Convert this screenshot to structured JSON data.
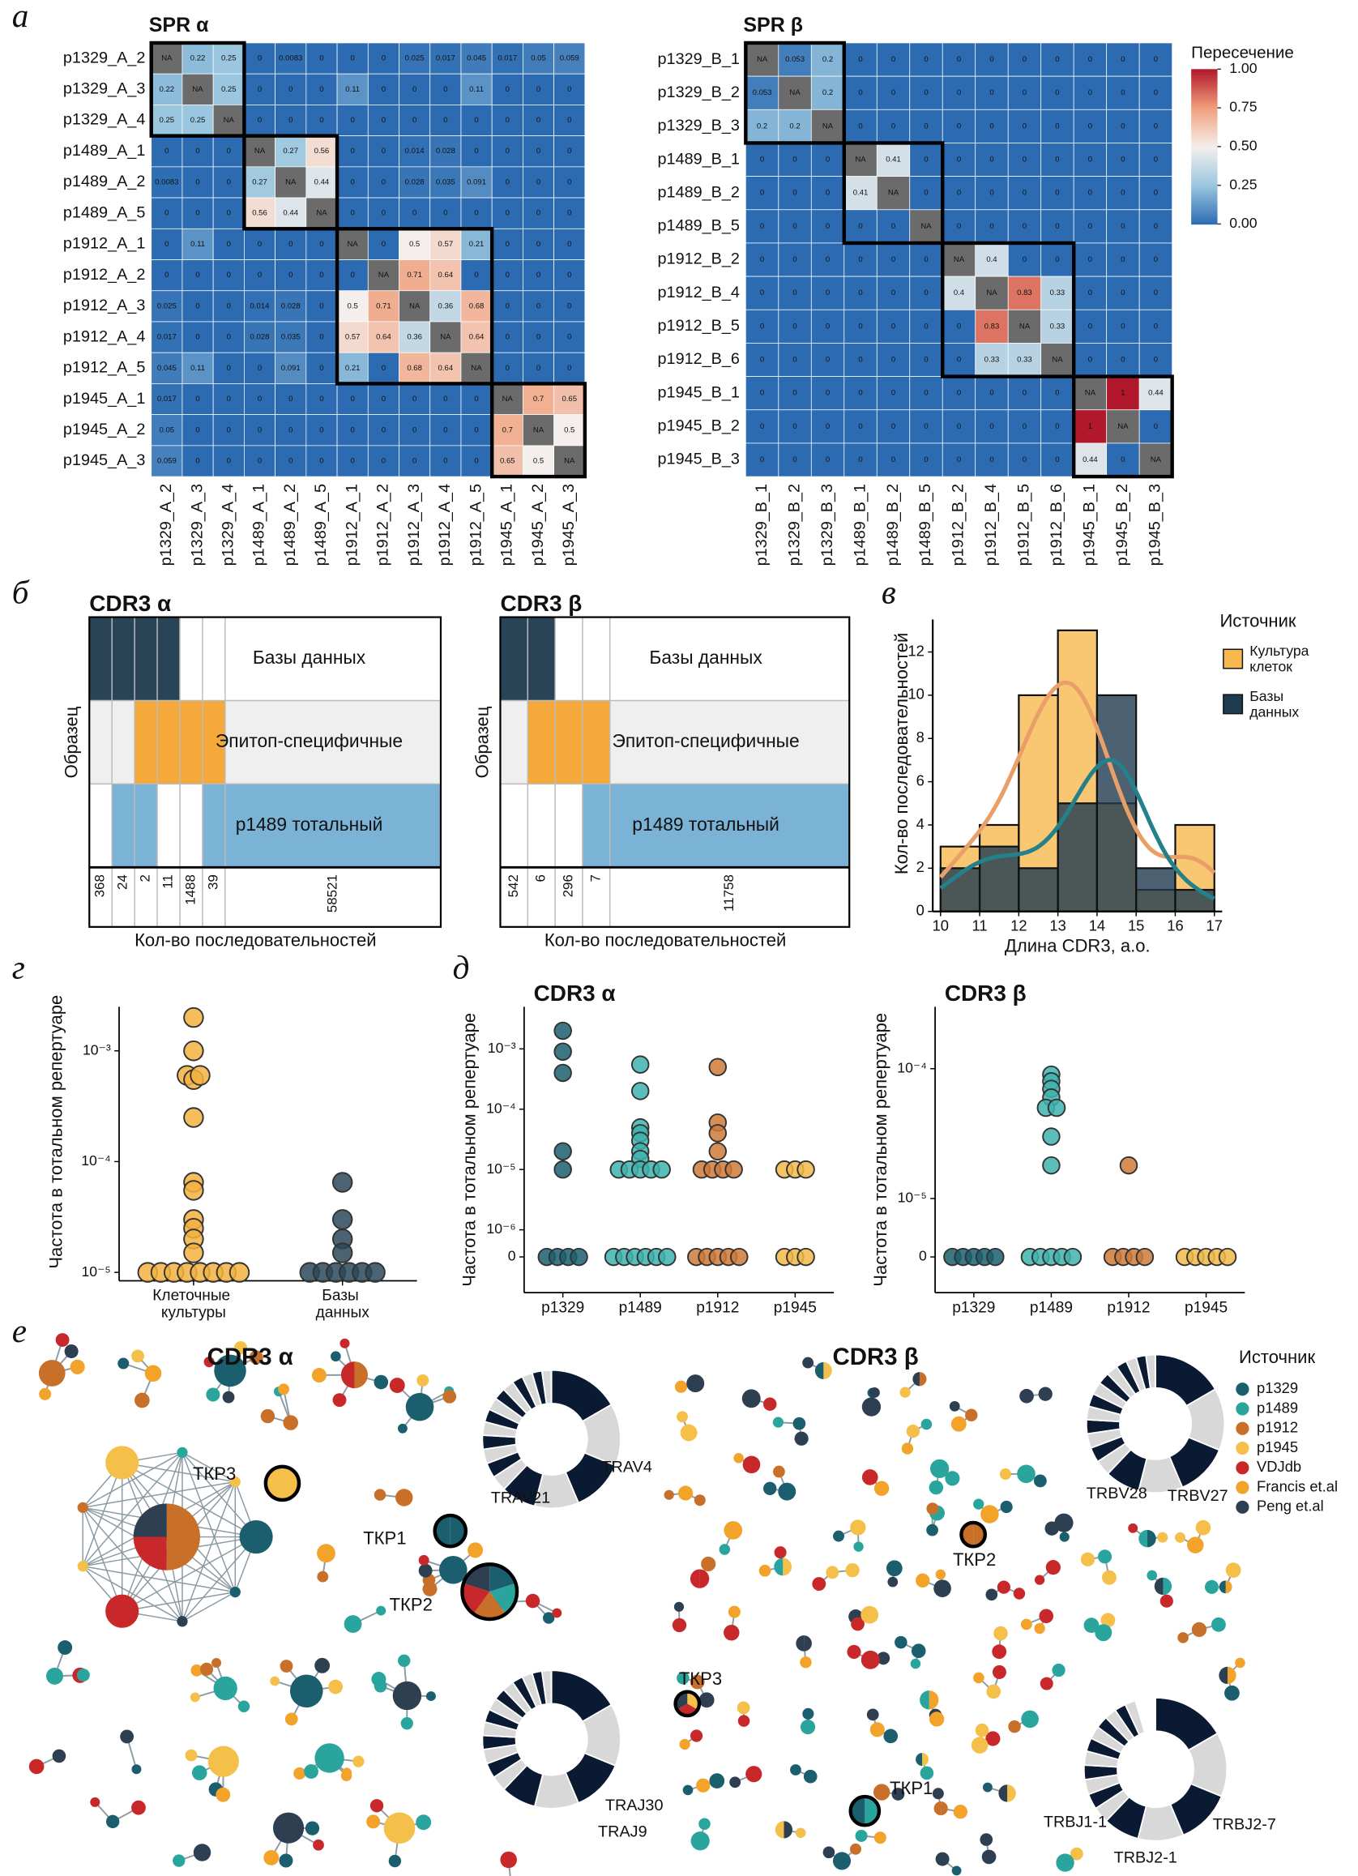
{
  "chart_data": [
    {
      "type": "heatmap",
      "title": "SPR α",
      "rows": [
        "p1329_A_2",
        "p1329_A_3",
        "p1329_A_4",
        "p1489_A_1",
        "p1489_A_2",
        "p1489_A_5",
        "p1912_A_1",
        "p1912_A_2",
        "p1912_A_3",
        "p1912_A_4",
        "p1912_A_5",
        "p1945_A_1",
        "p1945_A_2",
        "p1945_A_3"
      ],
      "columns": [
        "p1329_A_2",
        "p1329_A_3",
        "p1329_A_4",
        "p1489_A_1",
        "p1489_A_2",
        "p1489_A_5",
        "p1912_A_1",
        "p1912_A_2",
        "p1912_A_3",
        "p1912_A_4",
        "p1912_A_5",
        "p1945_A_1",
        "p1945_A_2",
        "p1945_A_3"
      ],
      "values": [
        [
          null,
          0.22,
          0.25,
          0,
          0.0083,
          0,
          0,
          0,
          0.025,
          0.017,
          0.045,
          0.017,
          0.05,
          0.059
        ],
        [
          0.22,
          null,
          0.25,
          0,
          0,
          0,
          0.11,
          0,
          0,
          0,
          0.11,
          0,
          0,
          0
        ],
        [
          0.25,
          0.25,
          null,
          0,
          0,
          0,
          0,
          0,
          0,
          0,
          0,
          0,
          0,
          0
        ],
        [
          0,
          0,
          0,
          null,
          0.27,
          0.56,
          0,
          0,
          0.014,
          0.028,
          0,
          0,
          0,
          0
        ],
        [
          0.0083,
          0,
          0,
          0.27,
          null,
          0.44,
          0,
          0,
          0.028,
          0.035,
          0.091,
          0,
          0,
          0
        ],
        [
          0,
          0,
          0,
          0.56,
          0.44,
          null,
          0,
          0,
          0,
          0,
          0,
          0,
          0,
          0
        ],
        [
          0,
          0.11,
          0,
          0,
          0,
          0,
          null,
          0,
          0.5,
          0.57,
          0.21,
          0,
          0,
          0
        ],
        [
          0,
          0,
          0,
          0,
          0,
          0,
          0,
          null,
          0.71,
          0.64,
          0,
          0,
          0,
          0
        ],
        [
          0.025,
          0,
          0,
          0.014,
          0.028,
          0,
          0.5,
          0.71,
          null,
          0.36,
          0.68,
          0,
          0,
          0
        ],
        [
          0.017,
          0,
          0,
          0.028,
          0.035,
          0,
          0.57,
          0.64,
          0.36,
          null,
          0.64,
          0,
          0,
          0
        ],
        [
          0.045,
          0.11,
          0,
          0,
          0.091,
          0,
          0.21,
          0,
          0.68,
          0.64,
          null,
          0,
          0,
          0
        ],
        [
          0.017,
          0,
          0,
          0,
          0,
          0,
          0,
          0,
          0,
          0,
          0,
          null,
          0.7,
          0.65
        ],
        [
          0.05,
          0,
          0,
          0,
          0,
          0,
          0,
          0,
          0,
          0,
          0,
          0.7,
          null,
          0.5
        ],
        [
          0.059,
          0,
          0,
          0,
          0,
          0,
          0,
          0,
          0,
          0,
          0,
          0.65,
          0.5,
          null
        ]
      ],
      "clim": [
        0,
        1
      ],
      "cmap": [
        "#2c6bb2",
        "#9ac6df",
        "#f4efed",
        "#f1a07d",
        "#b2182b"
      ],
      "na_label": "NA",
      "na_color": "#6b6b6b"
    },
    {
      "type": "heatmap",
      "title": "SPR β",
      "rows": [
        "p1329_B_1",
        "p1329_B_2",
        "p1329_B_3",
        "p1489_B_1",
        "p1489_B_2",
        "p1489_B_5",
        "p1912_B_2",
        "p1912_B_4",
        "p1912_B_5",
        "p1912_B_6",
        "p1945_B_1",
        "p1945_B_2",
        "p1945_B_3"
      ],
      "columns": [
        "p1329_B_1",
        "p1329_B_2",
        "p1329_B_3",
        "p1489_B_1",
        "p1489_B_2",
        "p1489_B_5",
        "p1912_B_2",
        "p1912_B_4",
        "p1912_B_5",
        "p1912_B_6",
        "p1945_B_1",
        "p1945_B_2",
        "p1945_B_3"
      ],
      "values": [
        [
          null,
          0.053,
          0.2,
          0,
          0,
          0,
          0,
          0,
          0,
          0,
          0,
          0,
          0
        ],
        [
          0.053,
          null,
          0.2,
          0,
          0,
          0,
          0,
          0,
          0,
          0,
          0,
          0,
          0
        ],
        [
          0.2,
          0.2,
          null,
          0,
          0,
          0,
          0,
          0,
          0,
          0,
          0,
          0,
          0
        ],
        [
          0,
          0,
          0,
          null,
          0.41,
          0,
          0,
          0,
          0,
          0,
          0,
          0,
          0
        ],
        [
          0,
          0,
          0,
          0.41,
          null,
          0,
          0,
          0,
          0,
          0,
          0,
          0,
          0
        ],
        [
          0,
          0,
          0,
          0,
          0,
          null,
          0,
          0,
          0,
          0,
          0,
          0,
          0
        ],
        [
          0,
          0,
          0,
          0,
          0,
          0,
          null,
          0.4,
          0,
          0,
          0,
          0,
          0
        ],
        [
          0,
          0,
          0,
          0,
          0,
          0,
          0.4,
          null,
          0.83,
          0.33,
          0,
          0,
          0
        ],
        [
          0,
          0,
          0,
          0,
          0,
          0,
          0,
          0.83,
          null,
          0.33,
          0,
          0,
          0
        ],
        [
          0,
          0,
          0,
          0,
          0,
          0,
          0,
          0.33,
          0.33,
          null,
          0,
          0,
          0
        ],
        [
          0,
          0,
          0,
          0,
          0,
          0,
          0,
          0,
          0,
          0,
          null,
          1,
          0.44
        ],
        [
          0,
          0,
          0,
          0,
          0,
          0,
          0,
          0,
          0,
          0,
          1,
          null,
          0
        ],
        [
          0,
          0,
          0,
          0,
          0,
          0,
          0,
          0,
          0,
          0,
          0.44,
          0,
          null
        ]
      ],
      "clim": [
        0,
        1
      ],
      "cmap": [
        "#2c6bb2",
        "#9ac6df",
        "#f4efed",
        "#f1a07d",
        "#b2182b"
      ],
      "na_label": "NA",
      "na_color": "#6b6b6b",
      "legend_title": "Пересечение",
      "colorbar_ticks": [
        {
          "value": 0,
          "label": "0.00"
        },
        {
          "value": 0.25,
          "label": "0.25"
        },
        {
          "value": 0.5,
          "label": "0.50"
        },
        {
          "value": 0.75,
          "label": "0.75"
        },
        {
          "value": 1,
          "label": "1.00"
        }
      ]
    },
    {
      "type": "upset",
      "title": "CDR3 α",
      "sets": [
        "Базы данных",
        "Эпитоп-специфичные",
        "p1489 тотальный"
      ],
      "set_colors": [
        "#2a4457",
        "#f5a93a",
        "#7ab3d6"
      ],
      "counts": [
        368,
        24,
        2,
        11,
        1488,
        39,
        58521
      ],
      "membership": [
        [
          0
        ],
        [
          0,
          2
        ],
        [
          0,
          1,
          2
        ],
        [
          0,
          1
        ],
        [
          1
        ],
        [
          1,
          2
        ],
        [
          2
        ]
      ],
      "ylabel": "Образец",
      "xlabel": "Кол-во последовательностей"
    },
    {
      "type": "upset",
      "title": "CDR3 β",
      "sets": [
        "Базы данных",
        "Эпитоп-специфичные",
        "p1489 тотальный"
      ],
      "set_colors": [
        "#2a4457",
        "#f5a93a",
        "#7ab3d6"
      ],
      "counts": [
        542,
        6,
        296,
        7,
        11758
      ],
      "membership": [
        [
          0
        ],
        [
          0,
          1
        ],
        [
          1
        ],
        [
          1,
          2
        ],
        [
          2
        ]
      ],
      "ylabel": "Образец",
      "xlabel": "Кол-во последовательностей"
    },
    {
      "type": "histogram",
      "bins": [
        10,
        11,
        12,
        13,
        14,
        15,
        16,
        17
      ],
      "series": [
        {
          "name": "Культура клеток",
          "color": "#f8b84e",
          "values": [
            3,
            4,
            10,
            13,
            5,
            1,
            4
          ]
        },
        {
          "name": "Базы данных",
          "color": "#1f3b50",
          "values": [
            2,
            3,
            2,
            5,
            10,
            2,
            1
          ]
        }
      ],
      "xlim": [
        9.8,
        17.2
      ],
      "xticks": [
        10,
        11,
        12,
        13,
        14,
        15,
        16,
        17
      ],
      "ylim": [
        0,
        13.5
      ],
      "yticks": [
        0,
        2,
        4,
        6,
        8,
        10,
        12
      ],
      "xlabel": "Длина CDR3, а.о.",
      "ylabel": "Кол-во последовательностей",
      "legend_title": "Источник",
      "kde_colors": [
        "#e8a068",
        "#24808a"
      ]
    },
    {
      "type": "strip",
      "yscale": "log",
      "ylabel": "Частота в тотальном репертуаре",
      "categories": [
        "Клеточные культуры",
        "Базы данных"
      ],
      "colors": [
        "#f5b23f",
        "#2b485a"
      ],
      "values": [
        [
          0.002,
          0.001,
          0.0006,
          0.00055,
          0.0006,
          0.00025,
          6.5e-05,
          5.5e-05,
          3e-05,
          2.5e-05,
          2e-05,
          1.5e-05,
          1e-05,
          1e-05,
          1e-05,
          1e-05,
          1e-05,
          1e-05,
          1e-05,
          1e-05
        ],
        [
          6.5e-05,
          3e-05,
          2e-05,
          1.5e-05,
          1e-05,
          1e-05,
          1e-05,
          1e-05,
          1e-05,
          1e-05
        ]
      ],
      "ylim": [
        8.4e-06,
        0.0025
      ],
      "yticks": [
        {
          "value": 1e-05,
          "label": "10⁻⁵"
        },
        {
          "value": 0.0001,
          "label": "10⁻⁴"
        },
        {
          "value": 0.001,
          "label": "10⁻³"
        }
      ]
    },
    {
      "type": "strip",
      "yscale": "symlog",
      "title": "CDR3 α",
      "ylabel": "Частота в тотальном репертуаре",
      "categories": [
        "p1329",
        "p1489",
        "p1912",
        "p1945"
      ],
      "colors": [
        "#1b5f6e",
        "#3fb3ae",
        "#cf7a3a",
        "#f2b84b"
      ],
      "values": [
        [
          0.002,
          0.0009,
          0.0004,
          2e-05,
          1e-05,
          0,
          0,
          0,
          0
        ],
        [
          0.00055,
          0.0002,
          5e-05,
          4e-05,
          3e-05,
          2e-05,
          1.5e-05,
          1e-05,
          1e-05,
          1e-05,
          1e-05,
          1e-05,
          0,
          0,
          0,
          0,
          0,
          0
        ],
        [
          0.0005,
          6e-05,
          4e-05,
          2e-05,
          1e-05,
          1e-05,
          1e-05,
          1e-05,
          0,
          0,
          0,
          0,
          0
        ],
        [
          1e-05,
          1e-05,
          1e-05,
          0,
          0,
          0
        ]
      ],
      "ylim": [
        0,
        0.005
      ],
      "yticks": [
        0,
        {
          "value": 1e-06,
          "label": "10⁻⁶"
        },
        {
          "value": 1e-05,
          "label": "10⁻⁵"
        },
        {
          "value": 0.0001,
          "label": "10⁻⁴"
        },
        {
          "value": 0.001,
          "label": "10⁻³"
        }
      ]
    },
    {
      "type": "strip",
      "yscale": "symlog",
      "title": "CDR3 β",
      "ylabel": "Частота в тотальном репертуаре",
      "categories": [
        "p1329",
        "p1489",
        "p1912",
        "p1945"
      ],
      "colors": [
        "#1b5f6e",
        "#3fb3ae",
        "#cf7a3a",
        "#f2b84b"
      ],
      "values": [
        [
          0,
          0,
          0,
          0,
          0
        ],
        [
          9e-05,
          8e-05,
          7e-05,
          6e-05,
          5e-05,
          5e-05,
          3e-05,
          1.8e-05,
          0,
          0,
          0,
          0,
          0
        ],
        [
          1.8e-05,
          0,
          0,
          0,
          0
        ],
        [
          0,
          0,
          0,
          0,
          0
        ]
      ],
      "ylim": [
        0,
        0.0003
      ],
      "yticks": [
        0,
        {
          "value": 1e-05,
          "label": "10⁻⁵"
        },
        {
          "value": 0.0001,
          "label": "10⁻⁴"
        }
      ]
    }
  ],
  "figure": {
    "panel_labels": [
      "а",
      "б",
      "в",
      "г",
      "д",
      "е"
    ],
    "network": {
      "titles": [
        "CDR3 α",
        "CDR3 β"
      ],
      "tcr_alpha": [
        "ТКР1",
        "ТКР2",
        "ТКР3"
      ],
      "tcr_beta": [
        "ТКР1",
        "ТКР2",
        "ТКР3"
      ],
      "genes_alpha": [
        "TRAV21",
        "TRAV4",
        "TRAJ30",
        "TRAJ9"
      ],
      "genes_beta": [
        "TRBV28",
        "TRBV27",
        "TRBJ1-1",
        "TRBJ2-1",
        "TRBJ2-7"
      ],
      "legend_title": "Источник",
      "legend": [
        {
          "name": "p1329",
          "color": "#1b5f6e"
        },
        {
          "name": "p1489",
          "color": "#2aa59d"
        },
        {
          "name": "p1912",
          "color": "#c8702a"
        },
        {
          "name": "p1945",
          "color": "#f4c04a"
        },
        {
          "name": "VDJdb",
          "color": "#c9282a"
        },
        {
          "name": "Francis et.al",
          "color": "#f3a22a"
        },
        {
          "name": "Peng et.al",
          "color": "#2d3f50"
        }
      ]
    }
  }
}
